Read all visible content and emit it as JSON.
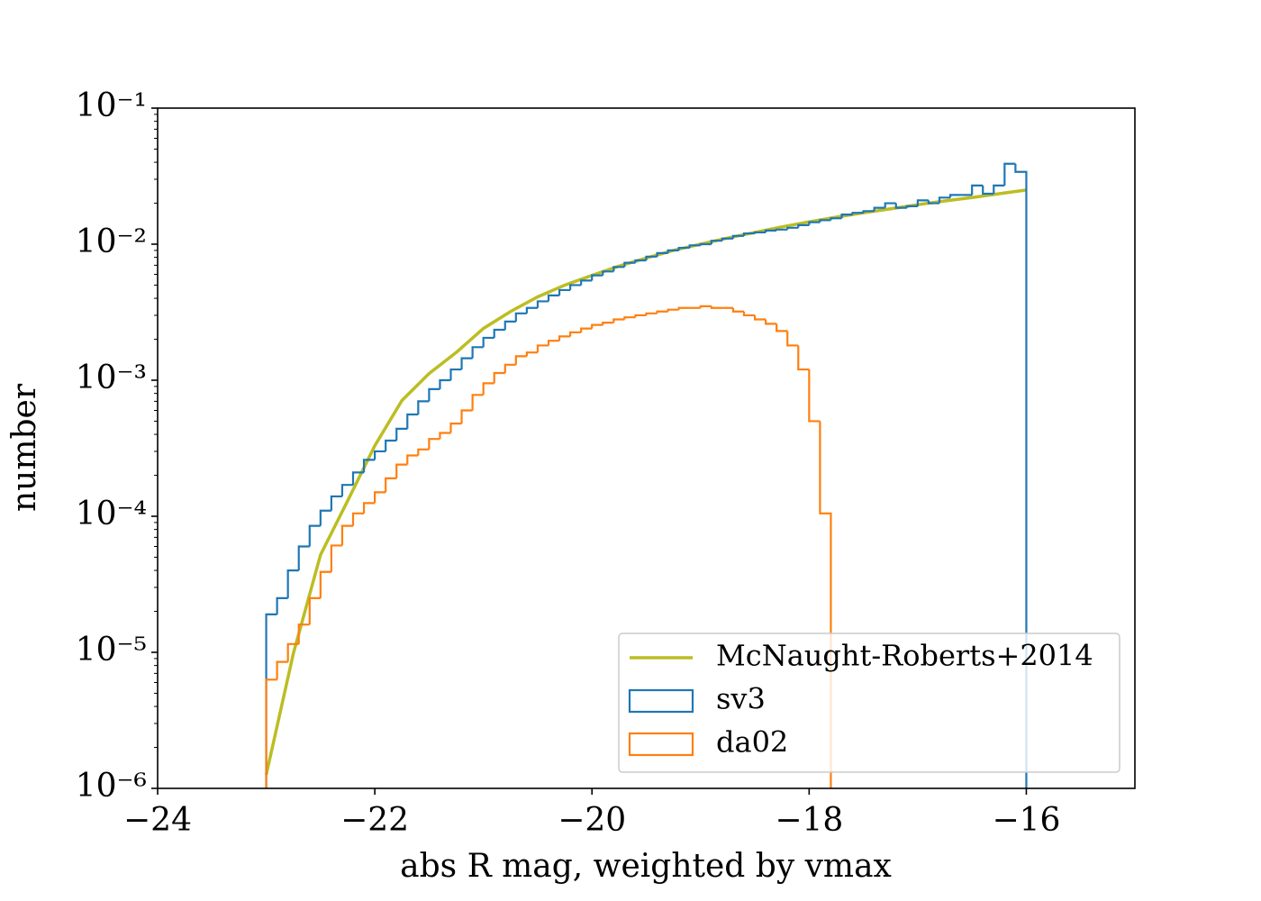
{
  "chart_data": {
    "type": "histogram",
    "xlabel": "abs R mag, weighted by vmax",
    "ylabel": "number",
    "xlim": [
      -24,
      -15
    ],
    "ylim": [
      1e-06,
      0.1
    ],
    "yscale": "log",
    "legend": "lower right",
    "xticks": [
      {
        "value": -24,
        "label": "−24"
      },
      {
        "value": -22,
        "label": "−22"
      },
      {
        "value": -20,
        "label": "−20"
      },
      {
        "value": -18,
        "label": "−18"
      },
      {
        "value": -16,
        "label": "−16"
      }
    ],
    "yticks": [
      {
        "value": 1e-06,
        "label": "10⁻⁶"
      },
      {
        "value": 1e-05,
        "label": "10⁻⁵"
      },
      {
        "value": 0.0001,
        "label": "10⁻⁴"
      },
      {
        "value": 0.001,
        "label": "10⁻³"
      },
      {
        "value": 0.01,
        "label": "10⁻²"
      },
      {
        "value": 0.1,
        "label": "10⁻¹"
      }
    ],
    "series": [
      {
        "name": "McNaught-Roberts+2014",
        "type": "line",
        "color": "#bcbd22",
        "x": [
          -23.0,
          -22.75,
          -22.5,
          -22.25,
          -22.0,
          -21.75,
          -21.5,
          -21.25,
          -21.0,
          -20.75,
          -20.5,
          -20.25,
          -20.0,
          -19.75,
          -19.5,
          -19.25,
          -19.0,
          -18.75,
          -18.5,
          -18.25,
          -18.0,
          -17.75,
          -17.5,
          -17.25,
          -17.0,
          -16.75,
          -16.5,
          -16.25,
          -16.0
        ],
        "values": [
          1.26e-06,
          9.8e-06,
          5.2e-05,
          0.00013,
          0.00033,
          0.00071,
          0.00112,
          0.0016,
          0.0024,
          0.0032,
          0.0041,
          0.005,
          0.0059,
          0.0069,
          0.0079,
          0.009,
          0.01,
          0.0111,
          0.0122,
          0.0134,
          0.0146,
          0.0158,
          0.017,
          0.0182,
          0.0195,
          0.0208,
          0.022,
          0.0235,
          0.025
        ]
      },
      {
        "name": "sv3",
        "type": "histogram",
        "color": "#1f77b4",
        "bins": [
          -23.0,
          -22.9,
          -22.8,
          -22.7,
          -22.6,
          -22.5,
          -22.4,
          -22.3,
          -22.2,
          -22.1,
          -22.0,
          -21.9,
          -21.8,
          -21.7,
          -21.6,
          -21.5,
          -21.4,
          -21.3,
          -21.2,
          -21.1,
          -21.0,
          -20.9,
          -20.8,
          -20.7,
          -20.6,
          -20.5,
          -20.4,
          -20.3,
          -20.2,
          -20.1,
          -20.0,
          -19.9,
          -19.8,
          -19.7,
          -19.6,
          -19.5,
          -19.4,
          -19.3,
          -19.2,
          -19.1,
          -19.0,
          -18.9,
          -18.8,
          -18.7,
          -18.6,
          -18.5,
          -18.4,
          -18.3,
          -18.2,
          -18.1,
          -18.0,
          -17.9,
          -17.8,
          -17.7,
          -17.6,
          -17.5,
          -17.4,
          -17.3,
          -17.2,
          -17.1,
          -17.0,
          -16.9,
          -16.8,
          -16.7,
          -16.6,
          -16.5,
          -16.4,
          -16.3,
          -16.2,
          -16.1,
          -16.0
        ],
        "values": [
          1.9e-05,
          2.5e-05,
          4e-05,
          6e-05,
          8.5e-05,
          0.00011,
          0.00014,
          0.00017,
          0.00021,
          0.00026,
          0.0003,
          0.00036,
          0.00044,
          0.00056,
          0.0007,
          0.00086,
          0.001,
          0.0012,
          0.00145,
          0.00175,
          0.00205,
          0.00235,
          0.0027,
          0.0031,
          0.0034,
          0.0038,
          0.0042,
          0.0046,
          0.005,
          0.0054,
          0.0059,
          0.0063,
          0.0068,
          0.0073,
          0.0076,
          0.0081,
          0.0086,
          0.009,
          0.0094,
          0.0098,
          0.01,
          0.0106,
          0.011,
          0.0115,
          0.012,
          0.0122,
          0.0126,
          0.0128,
          0.0132,
          0.0138,
          0.0145,
          0.015,
          0.0155,
          0.0165,
          0.017,
          0.0175,
          0.0185,
          0.02,
          0.0185,
          0.019,
          0.021,
          0.02,
          0.022,
          0.023,
          0.023,
          0.027,
          0.0235,
          0.027,
          0.039,
          0.034
        ]
      },
      {
        "name": "da02",
        "type": "histogram",
        "color": "#ff7f0e",
        "bins": [
          -23.0,
          -22.9,
          -22.8,
          -22.7,
          -22.6,
          -22.5,
          -22.4,
          -22.3,
          -22.2,
          -22.1,
          -22.0,
          -21.9,
          -21.8,
          -21.7,
          -21.6,
          -21.5,
          -21.4,
          -21.3,
          -21.2,
          -21.1,
          -21.0,
          -20.9,
          -20.8,
          -20.7,
          -20.6,
          -20.5,
          -20.4,
          -20.3,
          -20.2,
          -20.1,
          -20.0,
          -19.9,
          -19.8,
          -19.7,
          -19.6,
          -19.5,
          -19.4,
          -19.3,
          -19.2,
          -19.1,
          -19.0,
          -18.9,
          -18.8,
          -18.7,
          -18.6,
          -18.5,
          -18.4,
          -18.3,
          -18.2,
          -18.1,
          -18.0,
          -17.9,
          -17.8
        ],
        "values": [
          6.3e-06,
          8.5e-06,
          1.15e-05,
          1.6e-05,
          2.5e-05,
          3.9e-05,
          6.1e-05,
          8.5e-05,
          0.000105,
          0.000125,
          0.00015,
          0.00019,
          0.00024,
          0.00028,
          0.00031,
          0.00037,
          0.00041,
          0.00048,
          0.0006,
          0.00078,
          0.00095,
          0.00113,
          0.0013,
          0.0015,
          0.0016,
          0.0018,
          0.00195,
          0.0021,
          0.00225,
          0.0024,
          0.00255,
          0.00265,
          0.0028,
          0.0029,
          0.003,
          0.0031,
          0.0032,
          0.0033,
          0.0034,
          0.0034,
          0.0035,
          0.0034,
          0.0034,
          0.0032,
          0.003,
          0.0028,
          0.0026,
          0.0023,
          0.0018,
          0.0012,
          0.0005,
          0.000105
        ]
      }
    ]
  }
}
